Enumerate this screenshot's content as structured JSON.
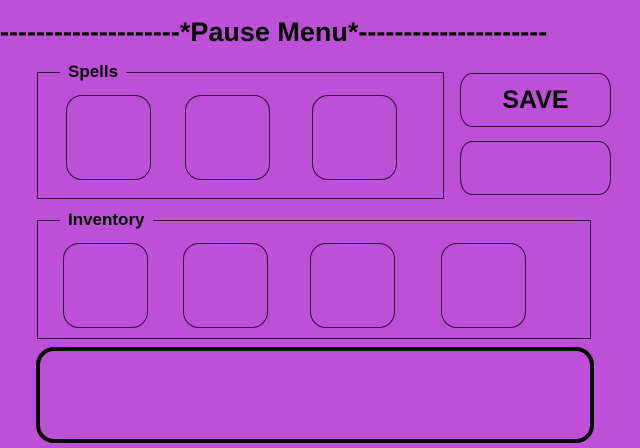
{
  "title": "--------------------*Pause Menu*---------------------",
  "spells": {
    "label": "Spells",
    "slots": [
      "",
      "",
      ""
    ]
  },
  "inventory": {
    "label": "Inventory",
    "slots": [
      "",
      "",
      "",
      ""
    ]
  },
  "buttons": {
    "save_label": "SAVE",
    "second_label": ""
  },
  "message": "",
  "colors": {
    "background": "#bd50d7",
    "outline": "#2a0a35",
    "text": "#000000"
  }
}
